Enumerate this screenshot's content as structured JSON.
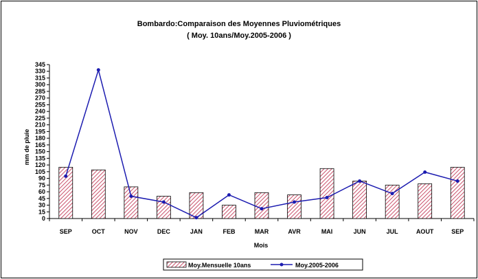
{
  "chart_data": {
    "type": "bar",
    "title": "Bombardo:Comparaison des Moyennes Pluviométriques",
    "subtitle": "( Moy. 10ans/Moy.2005-2006 )",
    "xlabel": "Mois",
    "ylabel": "mm de pluie",
    "ylim": [
      0,
      345
    ],
    "yticks": [
      0,
      15,
      30,
      45,
      60,
      75,
      90,
      105,
      120,
      135,
      150,
      165,
      180,
      195,
      210,
      225,
      240,
      255,
      270,
      285,
      300,
      315,
      330,
      345
    ],
    "grid": false,
    "legend_position": "bottom",
    "categories": [
      "SEP",
      "OCT",
      "NOV",
      "DEC",
      "JAN",
      "FEB",
      "MAR",
      "AVR",
      "MAI",
      "JUN",
      "JUL",
      "AOUT",
      "SEP"
    ],
    "series": [
      {
        "name": "Moy.Mensuelle 10ans",
        "type": "bar",
        "color": "#d4899a",
        "values": [
          115,
          109,
          71,
          50,
          58,
          30,
          58,
          53,
          112,
          84,
          75,
          78,
          115
        ]
      },
      {
        "name": "Moy.2005-2006",
        "type": "line",
        "color": "#1c1cb0",
        "values": [
          95,
          333,
          50,
          37,
          2,
          53,
          22,
          37,
          47,
          84,
          56,
          104,
          84
        ]
      }
    ]
  }
}
